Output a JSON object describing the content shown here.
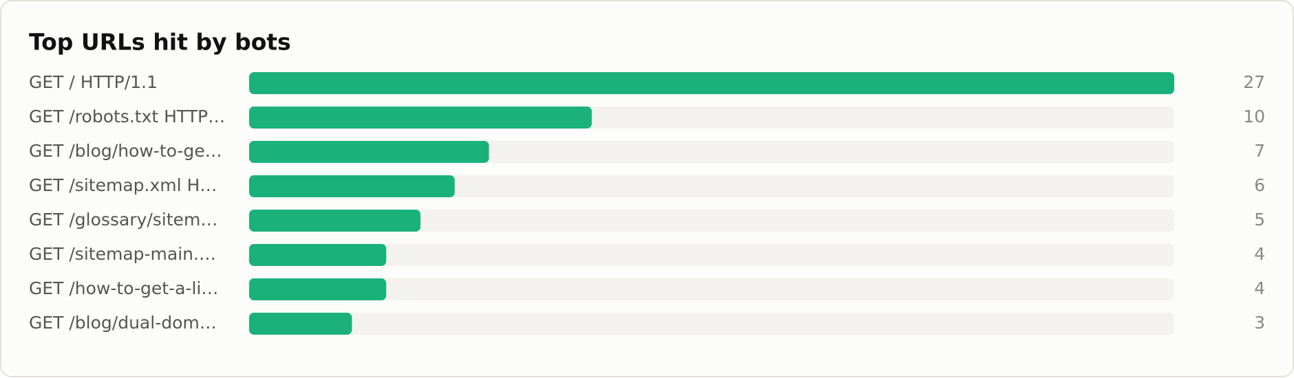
{
  "chart_data": {
    "type": "bar",
    "title": "Top URLs hit by bots",
    "categories": [
      "GET / HTTP/1.1",
      "GET /robots.txt HTTP…",
      "GET /blog/how-to-ge…",
      "GET /sitemap.xml H…",
      "GET /glossary/sitem…",
      "GET /sitemap-main.…",
      "GET /how-to-get-a-li…",
      "GET /blog/dual-dom…"
    ],
    "values": [
      27,
      10,
      7,
      6,
      5,
      4,
      4,
      3
    ],
    "color": "#1bb17b",
    "track_color": "#f3f2ee",
    "xlim": [
      0,
      27
    ]
  }
}
